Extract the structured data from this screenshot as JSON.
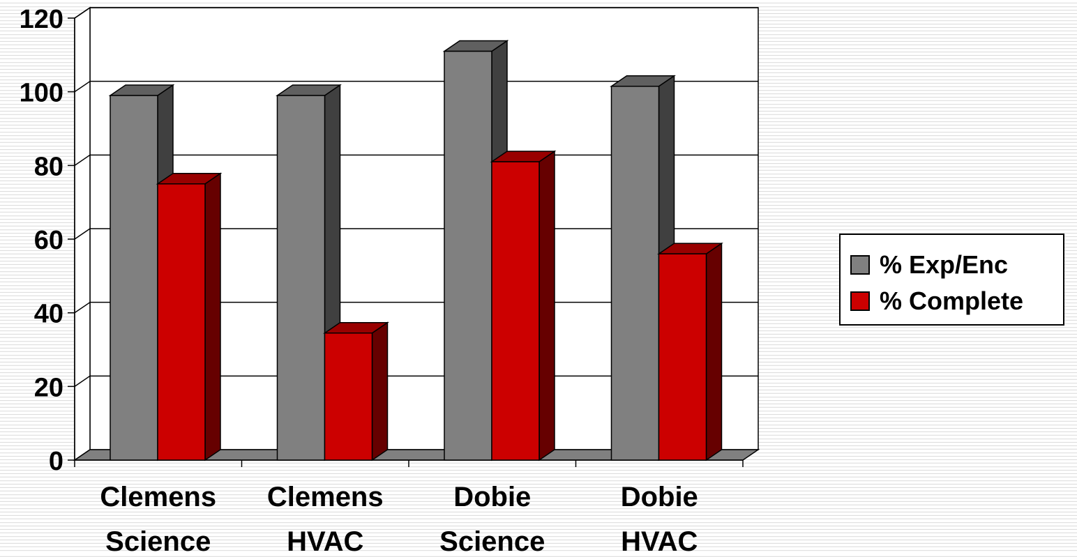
{
  "chart_data": {
    "type": "bar",
    "categories": [
      [
        "Clemens",
        "Science"
      ],
      [
        "Clemens",
        "HVAC"
      ],
      [
        "Dobie",
        "Science"
      ],
      [
        "Dobie",
        "HVAC"
      ]
    ],
    "series": [
      {
        "name": "% Exp/Enc",
        "values": [
          99,
          99,
          111,
          101.5
        ],
        "color": "#808080",
        "side_color": "#404040",
        "top_color": "#606060"
      },
      {
        "name": "% Complete",
        "values": [
          75,
          34.5,
          81,
          56
        ],
        "color": "#cc0000",
        "side_color": "#660000",
        "top_color": "#990000"
      }
    ],
    "yticks": [
      "0",
      "20",
      "40",
      "60",
      "80",
      "100",
      "120"
    ],
    "ylim": [
      0,
      120
    ],
    "grid": true,
    "legend_position": "right",
    "projection": "3d-bars"
  }
}
